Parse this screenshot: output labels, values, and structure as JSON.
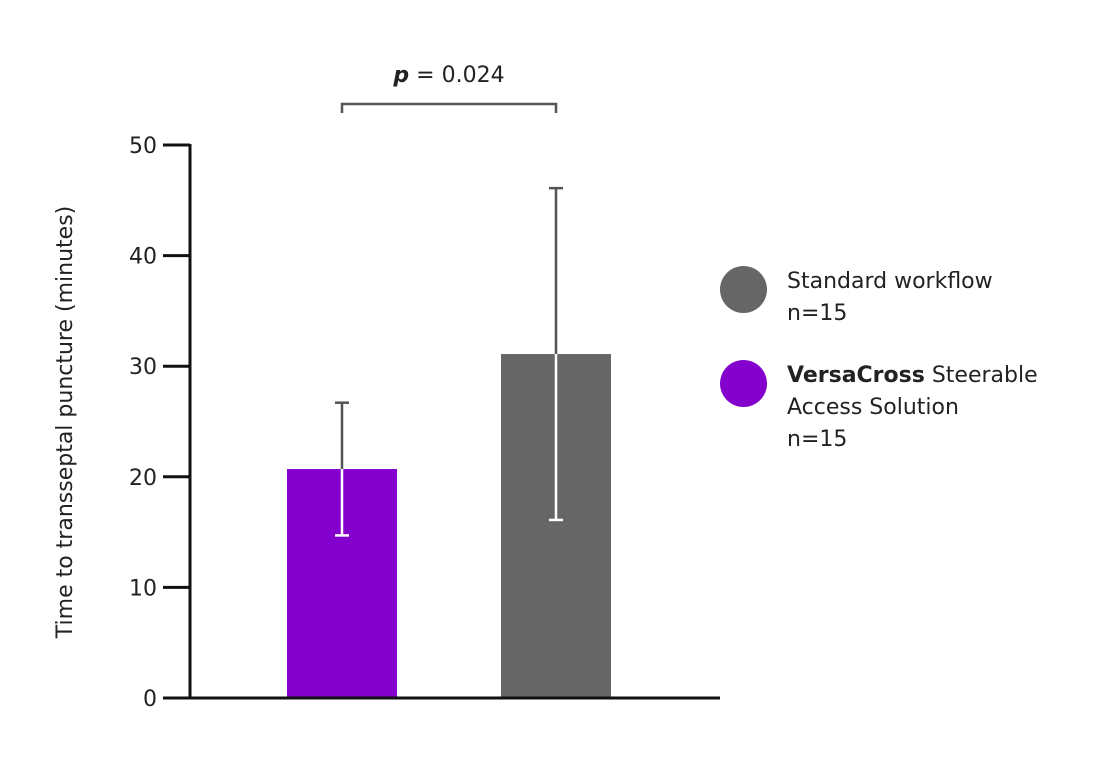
{
  "chart_data": {
    "type": "bar",
    "categories": [
      "VersaCross Steerable Access Solution",
      "Standard workflow"
    ],
    "values": [
      20.7,
      31.1
    ],
    "errors": [
      {
        "low": 14.7,
        "high": 26.7
      },
      {
        "low": 16.1,
        "high": 46.1
      }
    ],
    "colors": [
      "#8400CC",
      "#666666"
    ],
    "error_colors": [
      {
        "inside": "#ffffff",
        "outside": "#555555"
      },
      {
        "inside": "#ffffff",
        "outside": "#555555"
      }
    ],
    "ylabel": "Time to transseptal puncture  (minutes)",
    "xlabel": "",
    "ylim": [
      0,
      50
    ],
    "yticks": [
      0,
      10,
      20,
      30,
      40,
      50
    ],
    "significance": {
      "label_prefix": "p",
      "label_rest": " = 0.024",
      "between": [
        0,
        1
      ]
    }
  },
  "legend": {
    "items": [
      {
        "name_bold": "",
        "name": "Standard workflow",
        "n": "n=15",
        "color": "#666666"
      },
      {
        "name_bold": "VersaCross",
        "name": " Steerable Access Solution",
        "n": "n=15",
        "color": "#8400CC"
      }
    ]
  }
}
